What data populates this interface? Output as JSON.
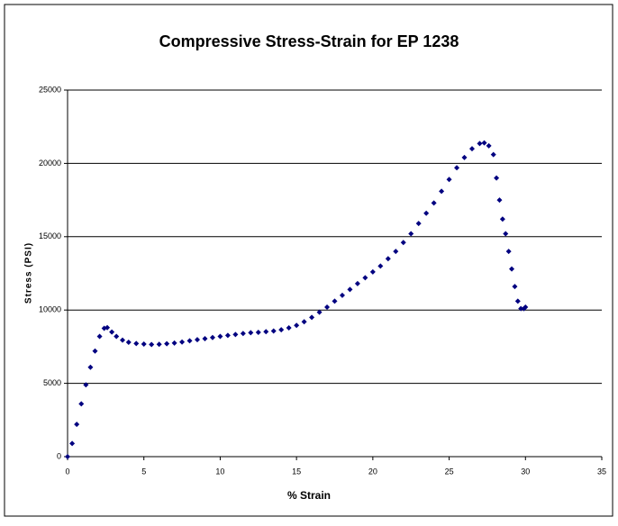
{
  "chart_data": {
    "type": "scatter",
    "title": "Compressive Stress-Strain for EP 1238",
    "xlabel": "% Strain",
    "ylabel": "Stress (PSI)",
    "series": [
      {
        "color": "#000080",
        "x": [
          0,
          0.3,
          0.6,
          0.9,
          1.2,
          1.5,
          1.8,
          2.1,
          2.4,
          2.6,
          2.9,
          3.2,
          3.6,
          4,
          4.5,
          5,
          5.5,
          6,
          6.5,
          7,
          7.5,
          8,
          8.5,
          9,
          9.5,
          10,
          10.5,
          11,
          11.5,
          12,
          12.5,
          13,
          13.5,
          14,
          14.5,
          15,
          15.5,
          16,
          16.5,
          17,
          17.5,
          18,
          18.5,
          19,
          19.5,
          20,
          20.5,
          21,
          21.5,
          22,
          22.5,
          23,
          23.5,
          24,
          24.5,
          25,
          25.5,
          26,
          26.5,
          27,
          27.3,
          27.6,
          27.9,
          28.1,
          28.3,
          28.5,
          28.7,
          28.9,
          29.1,
          29.3,
          29.5,
          29.7,
          29.9,
          30
        ],
        "values": [
          0,
          900,
          2200,
          3600,
          4900,
          6100,
          7200,
          8200,
          8750,
          8800,
          8500,
          8200,
          7950,
          7800,
          7720,
          7680,
          7650,
          7660,
          7700,
          7750,
          7820,
          7900,
          7980,
          8050,
          8120,
          8200,
          8270,
          8330,
          8400,
          8450,
          8480,
          8520,
          8570,
          8650,
          8780,
          8950,
          9200,
          9500,
          9850,
          10200,
          10600,
          11000,
          11400,
          11800,
          12200,
          12600,
          13000,
          13500,
          14000,
          14600,
          15200,
          15900,
          16600,
          17300,
          18100,
          18900,
          19700,
          20400,
          21000,
          21350,
          21400,
          21200,
          20600,
          19000,
          17500,
          16200,
          15200,
          14000,
          12800,
          11600,
          10600,
          10100,
          10100,
          10200
        ]
      }
    ],
    "xlim": [
      0,
      35
    ],
    "xticks": [
      0,
      5,
      10,
      15,
      20,
      25,
      30,
      35
    ],
    "ylim": [
      0,
      25000
    ],
    "yticks": [
      0,
      5000,
      10000,
      15000,
      20000,
      25000
    ],
    "grid": true
  }
}
